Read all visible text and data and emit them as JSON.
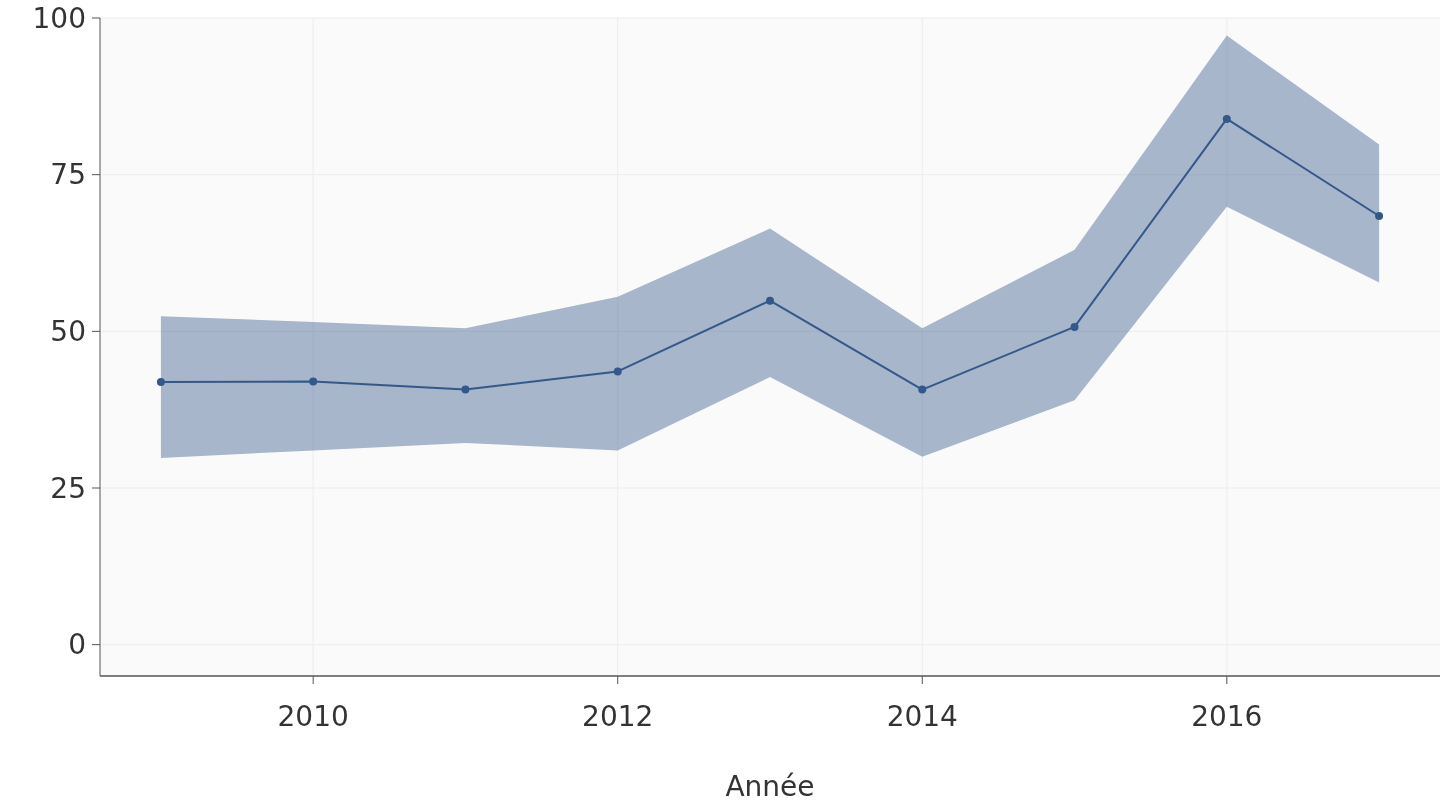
{
  "chart_data": {
    "type": "line",
    "xlabel": "Année",
    "x": [
      2009,
      2010,
      2011,
      2012,
      2013,
      2014,
      2015,
      2016,
      2017
    ],
    "series": [
      {
        "color": "#34588a",
        "values": [
          41.9,
          42,
          40.7,
          43.6,
          54.9,
          40.7,
          50.7,
          83.9,
          68.4
        ],
        "lower": [
          29.8,
          31,
          32.2,
          31,
          42.7,
          30,
          39,
          69.9,
          57.8
        ],
        "upper": [
          52.4,
          51.5,
          50.5,
          55.5,
          66.4,
          50.5,
          63,
          97.2,
          79.8
        ]
      }
    ],
    "xlim": [
      2008.6,
      2017.4
    ],
    "xticks": [
      2010,
      2012,
      2014,
      2016
    ],
    "ylim": [
      -5,
      100
    ],
    "yticks": [
      0,
      25,
      50,
      75,
      100
    ],
    "grid": true,
    "marker": "circle",
    "line_style": "solid"
  }
}
